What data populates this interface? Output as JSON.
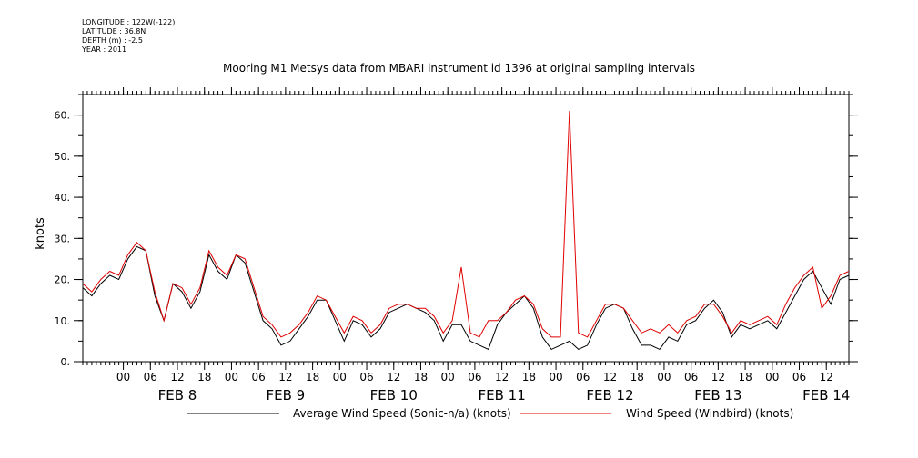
{
  "metadata": {
    "longitude": "LONGITUDE : 122W(-122)",
    "latitude": "LATITUDE : 36.8N",
    "depth": "DEPTH (m) : -2.5",
    "year": "YEAR : 2011"
  },
  "chart_data": {
    "type": "line",
    "title": "Mooring M1 Metsys data from MBARI instrument id 1396 at original sampling intervals",
    "ylabel": "knots",
    "xlabel": "",
    "ylim": [
      0,
      65
    ],
    "yticks": [
      0,
      10,
      20,
      30,
      40,
      50,
      60
    ],
    "ytick_labels": [
      "0.",
      "10.",
      "20.",
      "30.",
      "40.",
      "50.",
      "60."
    ],
    "xlim_hours": [
      -9,
      161
    ],
    "x_unit": "hours since 2011-02-08 00:00",
    "hour_ticks": [
      0,
      6,
      12,
      18,
      24,
      30,
      36,
      42,
      48,
      54,
      60,
      66,
      72,
      78,
      84,
      90,
      96,
      102,
      108,
      114,
      120,
      126,
      132,
      138,
      144,
      150,
      156
    ],
    "hour_tick_labels": [
      "00",
      "06",
      "12",
      "18",
      "00",
      "06",
      "12",
      "18",
      "00",
      "06",
      "12",
      "18",
      "00",
      "06",
      "12",
      "18",
      "00",
      "06",
      "12",
      "18",
      "00",
      "06",
      "12",
      "18",
      "00",
      "06",
      "12"
    ],
    "day_labels": [
      {
        "text": "FEB  8",
        "at_hour": 12
      },
      {
        "text": "FEB  9",
        "at_hour": 36
      },
      {
        "text": "FEB 10",
        "at_hour": 60
      },
      {
        "text": "FEB 11",
        "at_hour": 84
      },
      {
        "text": "FEB 12",
        "at_hour": 108
      },
      {
        "text": "FEB 13",
        "at_hour": 132
      },
      {
        "text": "FEB 14",
        "at_hour": 156
      }
    ],
    "legend_placement": "bottom",
    "grid": false,
    "series": [
      {
        "name": "Average Wind Speed (Sonic-n/a) (knots)",
        "color": "#000000",
        "x_hours": [
          -9,
          -7,
          -5,
          -3,
          -1,
          1,
          3,
          5,
          7,
          9,
          11,
          13,
          15,
          17,
          19,
          21,
          23,
          25,
          27,
          29,
          31,
          33,
          35,
          37,
          39,
          41,
          43,
          45,
          47,
          49,
          51,
          53,
          55,
          57,
          59,
          61,
          63,
          65,
          67,
          69,
          71,
          73,
          75,
          77,
          79,
          81,
          83,
          85,
          87,
          89,
          91,
          93,
          95,
          97,
          99,
          101,
          103,
          105,
          107,
          109,
          111,
          113,
          115,
          117,
          119,
          121,
          123,
          125,
          127,
          129,
          131,
          133,
          135,
          137,
          139,
          141,
          143,
          145,
          147,
          149,
          151,
          153,
          155,
          157,
          159,
          161
        ],
        "values": [
          18,
          16,
          19,
          21,
          20,
          25,
          28,
          27,
          16,
          10,
          19,
          17,
          13,
          17,
          26,
          22,
          20,
          26,
          24,
          17,
          10,
          8,
          4,
          5,
          8,
          11,
          15,
          15,
          10,
          5,
          10,
          9,
          6,
          8,
          12,
          13,
          14,
          13,
          12,
          10,
          5,
          9,
          9,
          5,
          4,
          3,
          9,
          12,
          14,
          16,
          13,
          6,
          3,
          4,
          5,
          3,
          4,
          9,
          13,
          14,
          13,
          8,
          4,
          4,
          3,
          6,
          5,
          9,
          10,
          13,
          15,
          12,
          6,
          9,
          8,
          9,
          10,
          8,
          12,
          16,
          20,
          22,
          18,
          14,
          20,
          21
        ]
      },
      {
        "name": "Wind Speed (Windbird) (knots)",
        "color": "#e00000",
        "x_hours": [
          -9,
          -7,
          -5,
          -3,
          -1,
          1,
          3,
          5,
          7,
          9,
          11,
          13,
          15,
          17,
          19,
          21,
          23,
          25,
          27,
          29,
          31,
          33,
          35,
          37,
          39,
          41,
          43,
          45,
          47,
          49,
          51,
          53,
          55,
          57,
          59,
          61,
          63,
          65,
          67,
          69,
          71,
          73,
          75,
          77,
          79,
          81,
          83,
          85,
          87,
          89,
          91,
          93,
          95,
          97,
          99,
          101,
          103,
          105,
          107,
          109,
          111,
          113,
          115,
          117,
          119,
          121,
          123,
          125,
          127,
          129,
          131,
          133,
          135,
          137,
          139,
          141,
          143,
          145,
          147,
          149,
          151,
          153,
          155,
          157,
          159,
          161
        ],
        "values": [
          19,
          17,
          20,
          22,
          21,
          26,
          29,
          27,
          17,
          10,
          19,
          18,
          14,
          18,
          27,
          23,
          21,
          26,
          25,
          18,
          11,
          9,
          6,
          7,
          9,
          12,
          16,
          15,
          11,
          7,
          11,
          10,
          7,
          9,
          13,
          14,
          14,
          13,
          13,
          11,
          7,
          10,
          23,
          7,
          6,
          10,
          10,
          12,
          15,
          16,
          14,
          8,
          6,
          6,
          61,
          7,
          6,
          10,
          14,
          14,
          13,
          10,
          7,
          8,
          7,
          9,
          7,
          10,
          11,
          14,
          14,
          11,
          7,
          10,
          9,
          10,
          11,
          9,
          14,
          18,
          21,
          23,
          13,
          16,
          21,
          22
        ]
      }
    ]
  }
}
